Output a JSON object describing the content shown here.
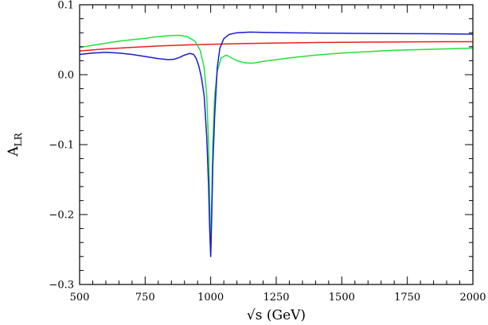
{
  "chart_data": {
    "type": "line",
    "title": "",
    "xlabel": "√s (GeV)",
    "ylabel": {
      "main": "A",
      "sub": "LR"
    },
    "xlim": [
      500,
      2000
    ],
    "ylim": [
      -0.3,
      0.1
    ],
    "xticks": [
      500,
      750,
      1000,
      1250,
      1500,
      1750,
      2000
    ],
    "xtick_labels": [
      "500",
      "750",
      "1000",
      "1250",
      "1500",
      "1750",
      "2000"
    ],
    "yticks": [
      -0.3,
      -0.2,
      -0.1,
      0.0,
      0.1
    ],
    "ytick_labels": [
      "−0.3",
      "−0.2",
      "−0.1",
      "0.0",
      "0.1"
    ],
    "grid": false,
    "legend": "none",
    "series": [
      {
        "color": "#e8201c",
        "x": [
          500,
          600,
          700,
          800,
          900,
          1000,
          1100,
          1200,
          1300,
          1400,
          1500,
          1600,
          1700,
          1800,
          1900,
          2000
        ],
        "y": [
          0.034,
          0.037,
          0.039,
          0.041,
          0.0425,
          0.0435,
          0.0443,
          0.045,
          0.0455,
          0.046,
          0.0463,
          0.0466,
          0.0468,
          0.047,
          0.0471,
          0.0472
        ]
      },
      {
        "color": "#22e03a",
        "x": [
          500,
          550,
          600,
          650,
          700,
          750,
          800,
          850,
          880,
          910,
          940,
          960,
          975,
          985,
          992,
          996,
          1000,
          1004,
          1008,
          1015,
          1025,
          1040,
          1060,
          1080,
          1100,
          1130,
          1160,
          1200,
          1300,
          1400,
          1500,
          1600,
          1700,
          1800,
          1900,
          2000
        ],
        "y": [
          0.039,
          0.042,
          0.045,
          0.048,
          0.05,
          0.052,
          0.0545,
          0.056,
          0.0563,
          0.0545,
          0.048,
          0.035,
          0.01,
          -0.03,
          -0.1,
          -0.18,
          -0.26,
          -0.18,
          -0.1,
          -0.03,
          0.005,
          0.024,
          0.028,
          0.024,
          0.02,
          0.017,
          0.0165,
          0.019,
          0.024,
          0.028,
          0.031,
          0.033,
          0.035,
          0.036,
          0.037,
          0.038
        ]
      },
      {
        "color": "#1a1ad6",
        "x": [
          500,
          550,
          600,
          650,
          700,
          750,
          800,
          840,
          860,
          880,
          900,
          920,
          935,
          945,
          955,
          965,
          975,
          985,
          992,
          996,
          1000,
          1004,
          1008,
          1015,
          1025,
          1035,
          1050,
          1070,
          1100,
          1150,
          1200,
          1300,
          1400,
          1500,
          1600,
          1700,
          1800,
          1900,
          2000
        ],
        "y": [
          0.029,
          0.031,
          0.032,
          0.031,
          0.029,
          0.026,
          0.023,
          0.0215,
          0.022,
          0.0245,
          0.028,
          0.0305,
          0.029,
          0.023,
          0.012,
          -0.005,
          -0.03,
          -0.09,
          -0.16,
          -0.22,
          -0.26,
          -0.2,
          -0.13,
          -0.06,
          0.01,
          0.038,
          0.0515,
          0.0575,
          0.06,
          0.061,
          0.0605,
          0.06,
          0.0595,
          0.0592,
          0.059,
          0.0588,
          0.0586,
          0.0584,
          0.058
        ]
      }
    ]
  }
}
